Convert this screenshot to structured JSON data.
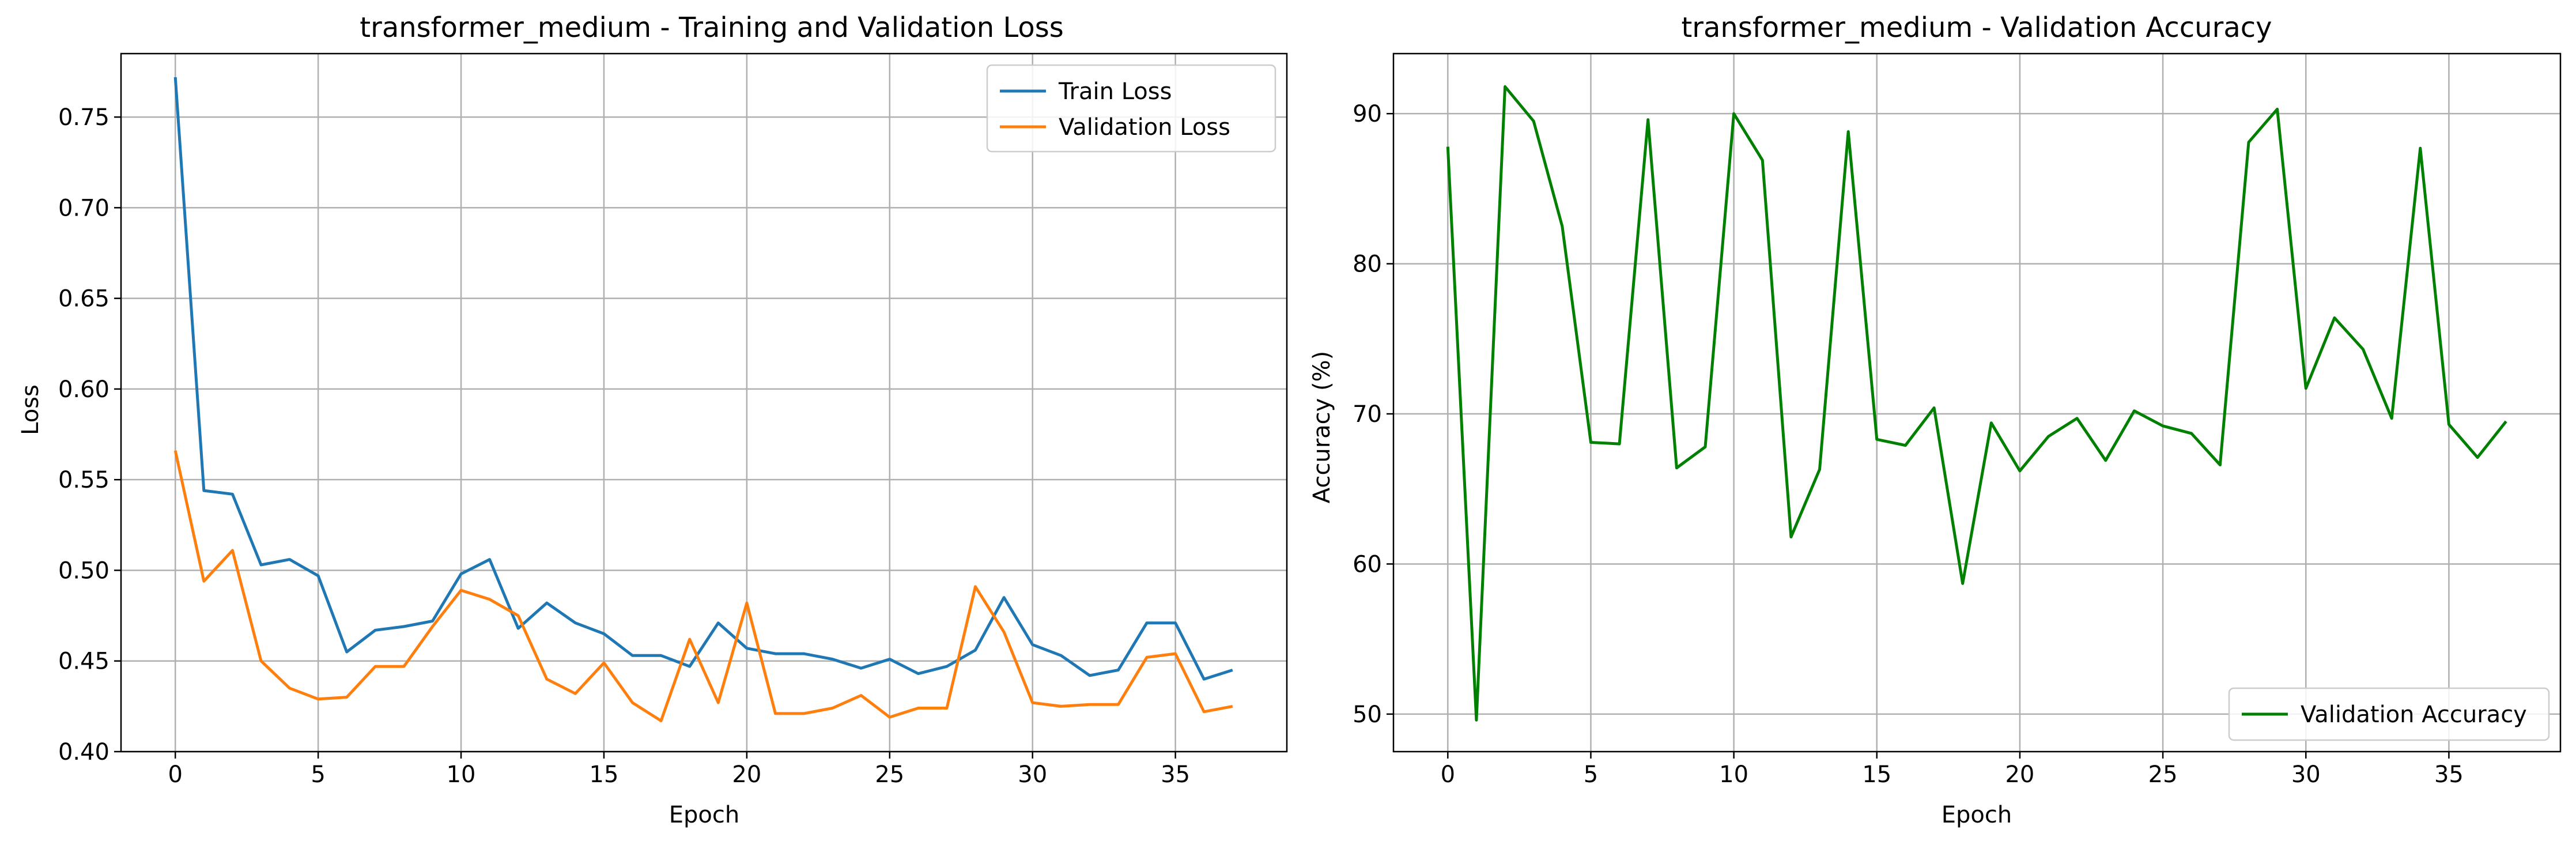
{
  "chart_data": [
    {
      "type": "line",
      "title": "transformer_medium - Training and Validation Loss",
      "xlabel": "Epoch",
      "ylabel": "Loss",
      "xlim": [
        -1.9,
        38.9
      ],
      "ylim": [
        0.4,
        0.785
      ],
      "xticks": [
        0,
        5,
        10,
        15,
        20,
        25,
        30,
        35
      ],
      "yticks": [
        0.4,
        0.45,
        0.5,
        0.55,
        0.6,
        0.65,
        0.7,
        0.75
      ],
      "ytick_labels": [
        "0.40",
        "0.45",
        "0.50",
        "0.55",
        "0.60",
        "0.65",
        "0.70",
        "0.75"
      ],
      "grid": true,
      "legend_position": "upper right",
      "x": [
        0,
        1,
        2,
        3,
        4,
        5,
        6,
        7,
        8,
        9,
        10,
        11,
        12,
        13,
        14,
        15,
        16,
        17,
        18,
        19,
        20,
        21,
        22,
        23,
        24,
        25,
        26,
        27,
        28,
        29,
        30,
        31,
        32,
        33,
        34,
        35,
        36,
        37
      ],
      "series": [
        {
          "name": "Train Loss",
          "color": "#1f77b4",
          "values": [
            0.772,
            0.544,
            0.542,
            0.503,
            0.506,
            0.497,
            0.455,
            0.467,
            0.469,
            0.472,
            0.498,
            0.506,
            0.468,
            0.482,
            0.471,
            0.465,
            0.453,
            0.453,
            0.447,
            0.471,
            0.457,
            0.454,
            0.454,
            0.451,
            0.446,
            0.451,
            0.443,
            0.447,
            0.456,
            0.485,
            0.459,
            0.453,
            0.442,
            0.445,
            0.471,
            0.471,
            0.44,
            0.445
          ]
        },
        {
          "name": "Validation Loss",
          "color": "#ff7f0e",
          "values": [
            0.566,
            0.494,
            0.511,
            0.45,
            0.435,
            0.429,
            0.43,
            0.447,
            0.447,
            0.469,
            0.489,
            0.484,
            0.475,
            0.44,
            0.432,
            0.449,
            0.427,
            0.417,
            0.462,
            0.427,
            0.482,
            0.421,
            0.421,
            0.424,
            0.431,
            0.419,
            0.424,
            0.424,
            0.491,
            0.466,
            0.427,
            0.425,
            0.426,
            0.426,
            0.452,
            0.454,
            0.422,
            0.425
          ]
        }
      ]
    },
    {
      "type": "line",
      "title": "transformer_medium - Validation Accuracy",
      "xlabel": "Epoch",
      "ylabel": "Accuracy (%)",
      "xlim": [
        -1.9,
        38.9
      ],
      "ylim": [
        47.5,
        94
      ],
      "xticks": [
        0,
        5,
        10,
        15,
        20,
        25,
        30,
        35
      ],
      "yticks": [
        50,
        60,
        70,
        80,
        90
      ],
      "ytick_labels": [
        "50",
        "60",
        "70",
        "80",
        "90"
      ],
      "grid": true,
      "legend_position": "lower right",
      "x": [
        0,
        1,
        2,
        3,
        4,
        5,
        6,
        7,
        8,
        9,
        10,
        11,
        12,
        13,
        14,
        15,
        16,
        17,
        18,
        19,
        20,
        21,
        22,
        23,
        24,
        25,
        26,
        27,
        28,
        29,
        30,
        31,
        32,
        33,
        34,
        35,
        36,
        37
      ],
      "series": [
        {
          "name": "Validation Accuracy",
          "color": "#008000",
          "values": [
            87.8,
            49.6,
            91.8,
            89.5,
            82.5,
            68.1,
            68.0,
            89.6,
            66.4,
            67.8,
            90.0,
            86.9,
            61.8,
            66.3,
            88.8,
            68.3,
            67.9,
            70.4,
            58.7,
            69.4,
            66.2,
            68.5,
            69.7,
            66.9,
            70.2,
            69.2,
            68.7,
            66.6,
            88.1,
            90.3,
            71.7,
            76.4,
            74.3,
            69.7,
            87.7,
            69.3,
            67.1,
            69.5
          ]
        }
      ]
    }
  ]
}
